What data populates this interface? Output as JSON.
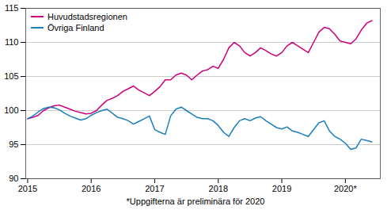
{
  "chart_data": {
    "type": "line",
    "caption": "*Uppgifterna är preliminära för 2020",
    "legend": "upper left",
    "grid": "y",
    "xlim": [
      2014.97,
      2020.55
    ],
    "xticks": [
      2015,
      2016,
      2017,
      2018,
      2019,
      {
        "value": 2020,
        "label": "2020*"
      }
    ],
    "ylim": [
      90,
      115
    ],
    "yticks": [
      90,
      95,
      100,
      105,
      110,
      115
    ],
    "x": [
      2015,
      2015.0833333333333,
      2015.1666666666667,
      2015.25,
      2015.3333333333333,
      2015.4166666666667,
      2015.5,
      2015.5833333333333,
      2015.6666666666667,
      2015.75,
      2015.8333333333333,
      2015.9166666666667,
      2016,
      2016.0833333333333,
      2016.1666666666667,
      2016.25,
      2016.3333333333333,
      2016.4166666666667,
      2016.5,
      2016.5833333333333,
      2016.6666666666667,
      2016.75,
      2016.8333333333333,
      2016.9166666666667,
      2017,
      2017.0833333333333,
      2017.1666666666667,
      2017.25,
      2017.3333333333333,
      2017.4166666666667,
      2017.5,
      2017.5833333333333,
      2017.6666666666667,
      2017.75,
      2017.8333333333333,
      2017.9166666666667,
      2018,
      2018.0833333333333,
      2018.1666666666667,
      2018.25,
      2018.3333333333333,
      2018.4166666666667,
      2018.5,
      2018.5833333333333,
      2018.6666666666667,
      2018.75,
      2018.8333333333333,
      2018.9166666666667,
      2019,
      2019.0833333333333,
      2019.1666666666667,
      2019.25,
      2019.3333333333333,
      2019.4166666666667,
      2019.5,
      2019.5833333333333,
      2019.6666666666667,
      2019.75,
      2019.8333333333333,
      2019.9166666666667,
      2020,
      2020.0833333333333,
      2020.1666666666667,
      2020.25,
      2020.3333333333333,
      2020.4166666666667
    ],
    "series": [
      {
        "name": "Huvudstadsregionen",
        "color": "#cc007a",
        "values": [
          98.8,
          99.0,
          99.3,
          100.0,
          100.4,
          100.7,
          100.8,
          100.5,
          100.2,
          99.9,
          99.7,
          99.5,
          99.6,
          100.0,
          100.8,
          101.5,
          101.8,
          102.2,
          102.8,
          103.2,
          103.6,
          103.0,
          102.6,
          102.2,
          102.8,
          103.5,
          104.5,
          104.5,
          105.2,
          105.5,
          105.2,
          104.5,
          105.2,
          105.8,
          106.0,
          106.5,
          106.2,
          107.5,
          109.2,
          110.0,
          109.5,
          108.5,
          108.0,
          108.5,
          109.2,
          108.8,
          108.3,
          108.0,
          108.5,
          109.5,
          110.0,
          109.5,
          109.0,
          108.5,
          110.0,
          111.5,
          112.2,
          112.0,
          111.2,
          110.2,
          110.0,
          109.8,
          110.5,
          111.8,
          112.8,
          113.2
        ]
      },
      {
        "name": "Övriga Finland",
        "color": "#1a7fbf",
        "values": [
          98.8,
          99.2,
          99.8,
          100.3,
          100.5,
          100.4,
          100.1,
          99.6,
          99.2,
          98.9,
          98.6,
          98.8,
          99.3,
          99.7,
          100.0,
          100.2,
          99.6,
          99.0,
          98.8,
          98.5,
          98.0,
          98.4,
          98.8,
          99.2,
          97.2,
          96.8,
          96.5,
          99.2,
          100.2,
          100.5,
          100.0,
          99.5,
          99.0,
          98.8,
          98.8,
          98.5,
          97.8,
          96.8,
          96.2,
          97.5,
          98.5,
          98.8,
          98.5,
          98.9,
          99.1,
          98.5,
          98.0,
          97.5,
          97.3,
          97.6,
          97.0,
          96.8,
          96.5,
          96.2,
          97.2,
          98.2,
          98.5,
          97.0,
          96.2,
          95.8,
          95.2,
          94.3,
          94.5,
          95.8,
          95.6,
          95.4
        ]
      }
    ]
  }
}
